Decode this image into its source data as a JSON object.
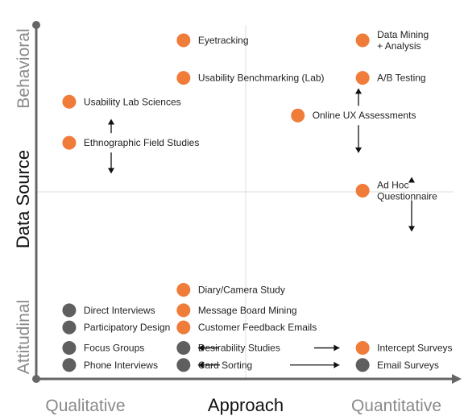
{
  "chart_data": {
    "type": "scatter",
    "title": "",
    "xlabel": "Approach",
    "ylabel": "Data Source",
    "x_tick_labels": [
      "Qualitative",
      "Quantitative"
    ],
    "y_tick_labels": [
      "Attitudinal",
      "Behavioral"
    ],
    "xlim": [
      0,
      10
    ],
    "ylim": [
      0,
      10
    ],
    "grid": "center-crosshair",
    "legend": "none",
    "category_colors": {
      "mixed": "#f07c3a",
      "qualitative-attitudinal": "#5f5f5f"
    },
    "points": [
      {
        "lines": [
          "Eyetracking"
        ],
        "x": 3.4,
        "y": 9.6,
        "color": "#f07c3a"
      },
      {
        "lines": [
          "Data Mining",
          "+ Analysis"
        ],
        "x": 8.1,
        "y": 9.6,
        "color": "#f07c3a"
      },
      {
        "lines": [
          "Usability Benchmarking (Lab)"
        ],
        "x": 3.4,
        "y": 8.5,
        "color": "#f07c3a"
      },
      {
        "lines": [
          "A/B Testing"
        ],
        "x": 8.1,
        "y": 8.5,
        "color": "#f07c3a"
      },
      {
        "lines": [
          "Usability Lab Sciences"
        ],
        "x": 0.4,
        "y": 7.8,
        "color": "#f07c3a"
      },
      {
        "lines": [
          "Online UX Assessments"
        ],
        "x": 6.4,
        "y": 7.4,
        "color": "#f07c3a"
      },
      {
        "lines": [
          "Ethnographic Field Studies"
        ],
        "x": 0.4,
        "y": 6.6,
        "color": "#f07c3a"
      },
      {
        "lines": [
          "Ad Hoc",
          "Questionnaire"
        ],
        "x": 8.1,
        "y": 5.2,
        "color": "#f07c3a"
      },
      {
        "lines": [
          "Diary/Camera Study"
        ],
        "x": 3.4,
        "y": 2.3,
        "color": "#f07c3a"
      },
      {
        "lines": [
          "Message Board Mining"
        ],
        "x": 3.4,
        "y": 1.7,
        "color": "#f07c3a"
      },
      {
        "lines": [
          "Customer Feedback Emails"
        ],
        "x": 3.4,
        "y": 1.2,
        "color": "#f07c3a"
      },
      {
        "lines": [
          "Direct Interviews"
        ],
        "x": 0.4,
        "y": 1.7,
        "color": "#5f5f5f"
      },
      {
        "lines": [
          "Participatory Design"
        ],
        "x": 0.4,
        "y": 1.2,
        "color": "#5f5f5f"
      },
      {
        "lines": [
          "Focus Groups"
        ],
        "x": 0.4,
        "y": 0.6,
        "color": "#5f5f5f"
      },
      {
        "lines": [
          "Phone Interviews"
        ],
        "x": 0.4,
        "y": 0.1,
        "color": "#5f5f5f"
      },
      {
        "lines": [
          "Desirability Studies"
        ],
        "x": 3.4,
        "y": 0.6,
        "color": "#5f5f5f"
      },
      {
        "lines": [
          "Card Sorting"
        ],
        "x": 3.4,
        "y": 0.1,
        "color": "#5f5f5f"
      },
      {
        "lines": [
          "Intercept Surveys"
        ],
        "x": 8.1,
        "y": 0.6,
        "color": "#f07c3a"
      },
      {
        "lines": [
          "Email Surveys"
        ],
        "x": 8.1,
        "y": 0.1,
        "color": "#5f5f5f"
      }
    ],
    "ranges": [
      {
        "of": "Ethnographic Field Studies",
        "axis": "y",
        "from": 5.7,
        "to": 7.3
      },
      {
        "of": "Online UX Assessments",
        "axis": "y",
        "from": 6.3,
        "to": 8.2
      },
      {
        "of": "Ad Hoc Questionnaire",
        "axis": "y",
        "from": 4.0,
        "to": 5.6
      },
      {
        "of": "Desirability Studies",
        "axis": "x",
        "from": 3.4,
        "to": 8.0
      },
      {
        "of": "Card Sorting",
        "axis": "x",
        "from": 3.4,
        "to": 8.0
      }
    ]
  }
}
